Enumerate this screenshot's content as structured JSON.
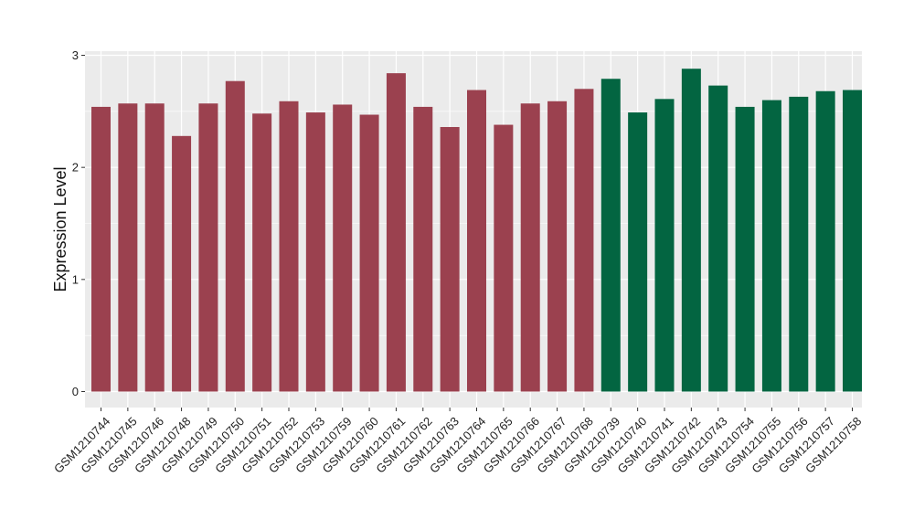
{
  "chart_data": {
    "type": "bar",
    "title": "",
    "xlabel": "",
    "ylabel": "Expression Level",
    "ylim": [
      0,
      3
    ],
    "yticks": [
      0,
      1,
      2,
      3
    ],
    "grid": true,
    "categories": [
      "GSM1210744",
      "GSM1210745",
      "GSM1210746",
      "GSM1210748",
      "GSM1210749",
      "GSM1210750",
      "GSM1210751",
      "GSM1210752",
      "GSM1210753",
      "GSM1210759",
      "GSM1210760",
      "GSM1210761",
      "GSM1210762",
      "GSM1210763",
      "GSM1210764",
      "GSM1210765",
      "GSM1210766",
      "GSM1210767",
      "GSM1210768",
      "GSM1210739",
      "GSM1210740",
      "GSM1210741",
      "GSM1210742",
      "GSM1210743",
      "GSM1210754",
      "GSM1210755",
      "GSM1210756",
      "GSM1210757",
      "GSM1210758"
    ],
    "values": [
      2.54,
      2.57,
      2.57,
      2.28,
      2.57,
      2.77,
      2.48,
      2.59,
      2.49,
      2.56,
      2.47,
      2.84,
      2.54,
      2.36,
      2.69,
      2.38,
      2.57,
      2.59,
      2.7,
      2.79,
      2.49,
      2.61,
      2.88,
      2.73,
      2.54,
      2.6,
      2.63,
      2.68,
      2.69
    ],
    "group_colors": [
      "#9b414f",
      "#036541"
    ],
    "bar_group": [
      0,
      0,
      0,
      0,
      0,
      0,
      0,
      0,
      0,
      0,
      0,
      0,
      0,
      0,
      0,
      0,
      0,
      0,
      0,
      1,
      1,
      1,
      1,
      1,
      1,
      1,
      1,
      1,
      1
    ],
    "panel_background": "#ebebeb",
    "grid_color": "#ffffff"
  }
}
